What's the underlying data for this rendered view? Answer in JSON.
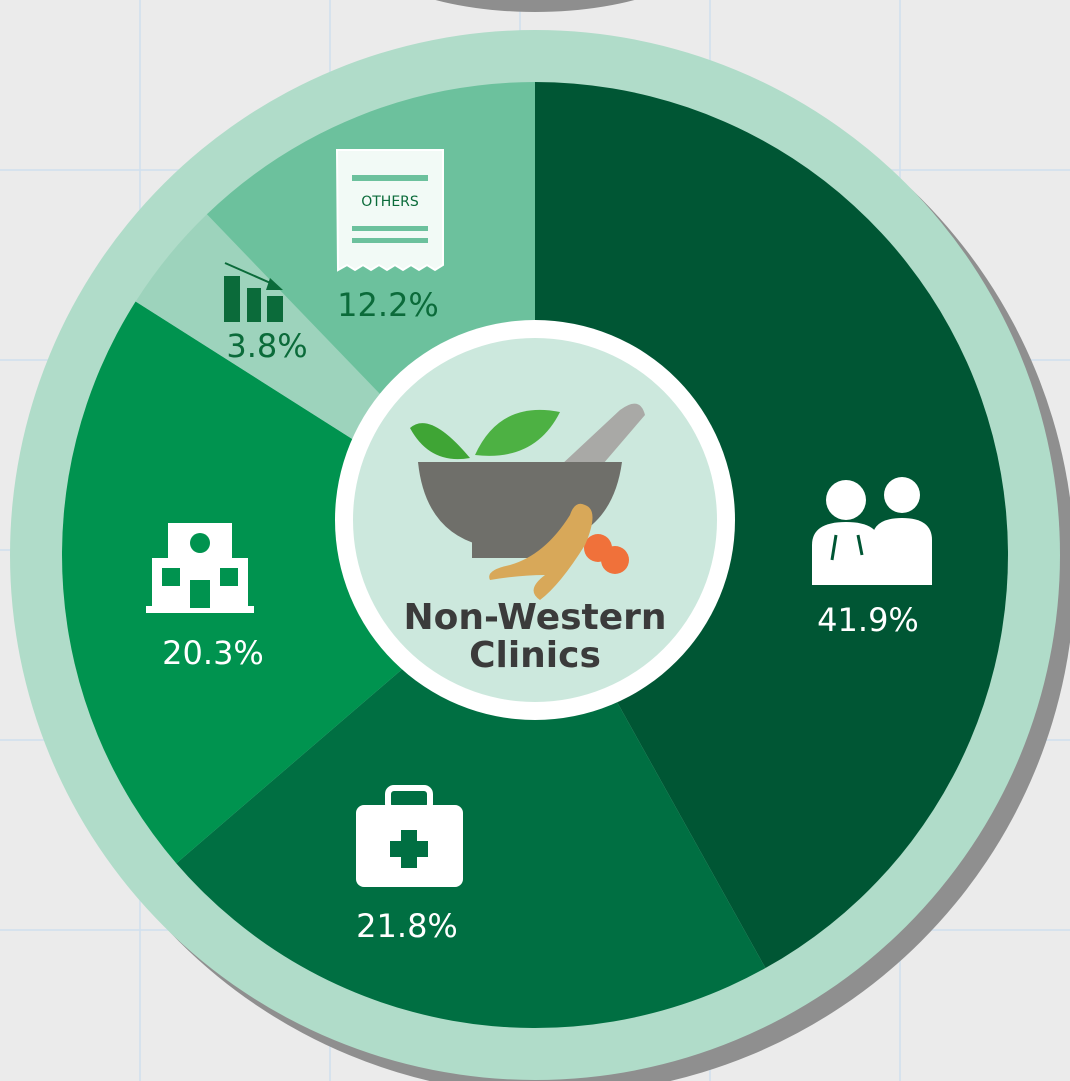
{
  "chart_data": {
    "type": "pie",
    "title": "Non-Western Clinics",
    "categories": [
      null,
      null,
      null,
      null,
      "OTHERS"
    ],
    "values": [
      41.9,
      21.8,
      20.3,
      3.8,
      12.2
    ],
    "value_labels": [
      "41.9%",
      "21.8%",
      "20.3%",
      "3.8%",
      "12.2%"
    ],
    "colors": [
      "#005634",
      "#006f42",
      "#00934f",
      "#9dd3bc",
      "#6cc19d"
    ]
  }
}
